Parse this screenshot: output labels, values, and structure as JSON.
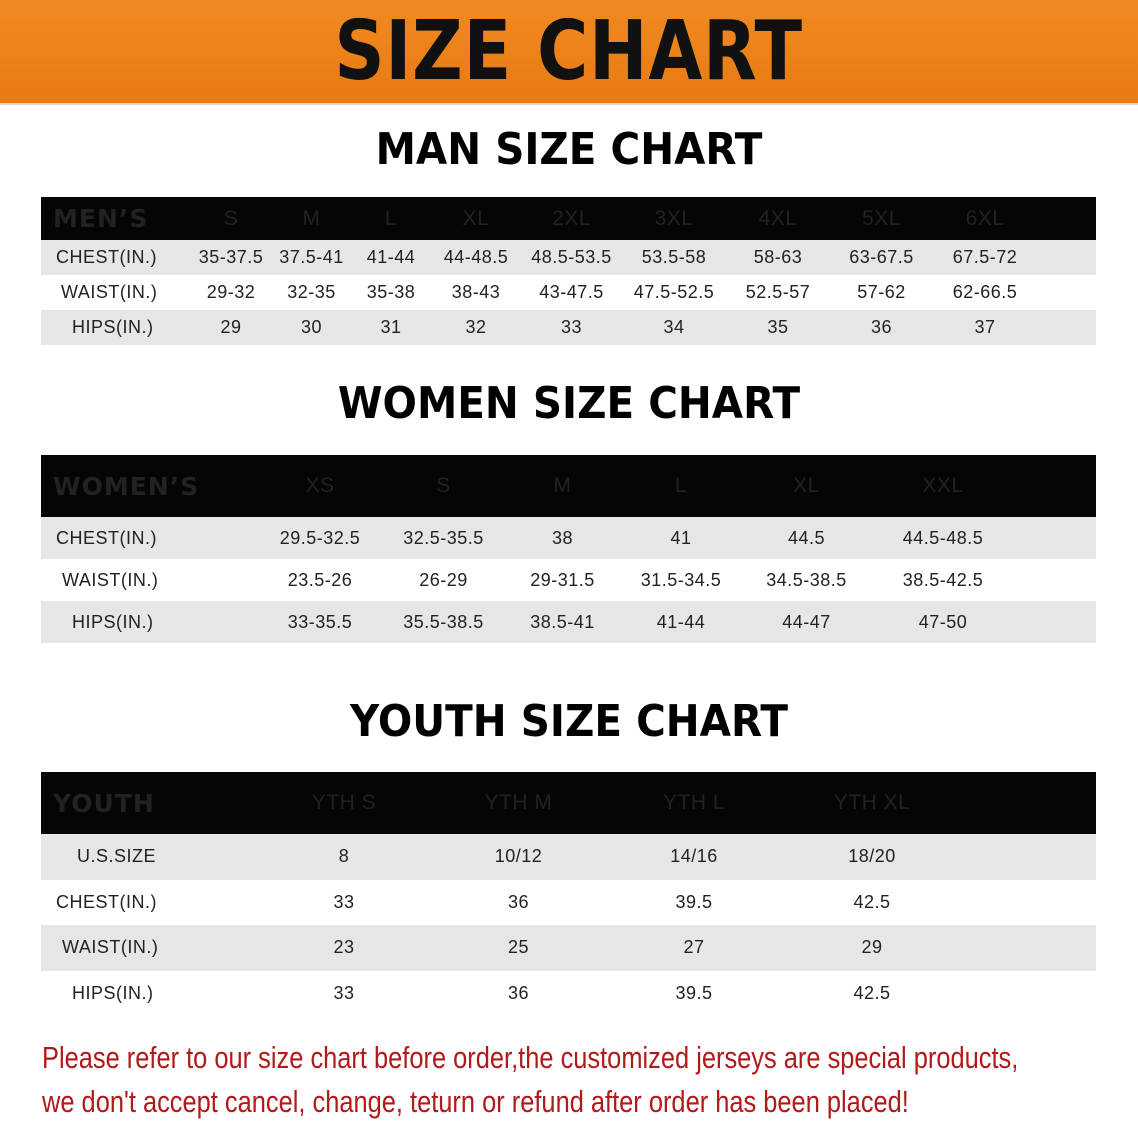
{
  "banner": {
    "title": "SIZE CHART",
    "color": "#ee8419"
  },
  "sections": [
    {
      "key": "men",
      "title": "MAN SIZE CHART",
      "header": [
        "MEN’S",
        "S",
        "M",
        "L",
        "XL",
        "2XL",
        "3XL",
        "4XL",
        "5XL",
        "6XL"
      ],
      "rows": [
        [
          "CHEST(IN.)",
          "35-37.5",
          "37.5-41",
          "41-44",
          "44-48.5",
          "48.5-53.5",
          "53.5-58",
          "58-63",
          "63-67.5",
          "67.5-72"
        ],
        [
          "WAIST(IN.)",
          "29-32",
          "32-35",
          "35-38",
          "38-43",
          "43-47.5",
          "47.5-52.5",
          "52.5-57",
          "57-62",
          "62-66.5"
        ],
        [
          "HIPS(IN.)",
          "29",
          "30",
          "31",
          "32",
          "33",
          "34",
          "35",
          "36",
          "37"
        ]
      ]
    },
    {
      "key": "women",
      "title": "WOMEN SIZE CHART",
      "header": [
        "WOMEN’S",
        "XS",
        "S",
        "M",
        "L",
        "XL",
        "XXL"
      ],
      "rows": [
        [
          "CHEST(IN.)",
          "29.5-32.5",
          "32.5-35.5",
          "38",
          "41",
          "44.5",
          "44.5-48.5"
        ],
        [
          "WAIST(IN.)",
          "23.5-26",
          "26-29",
          "29-31.5",
          "31.5-34.5",
          "34.5-38.5",
          "38.5-42.5"
        ],
        [
          "HIPS(IN.)",
          "33-35.5",
          "35.5-38.5",
          "38.5-41",
          "41-44",
          "44-47",
          "47-50"
        ]
      ]
    },
    {
      "key": "youth",
      "title": "YOUTH SIZE CHART",
      "header": [
        "YOUTH",
        "YTH S",
        "YTH M",
        "YTH L",
        "YTH XL"
      ],
      "rows": [
        [
          "U.S.SIZE",
          "8",
          "10/12",
          "14/16",
          "18/20"
        ],
        [
          "CHEST(IN.)",
          "33",
          "36",
          "39.5",
          "42.5"
        ],
        [
          "WAIST(IN.)",
          "23",
          "25",
          "27",
          "29"
        ],
        [
          "HIPS(IN.)",
          "33",
          "36",
          "39.5",
          "42.5"
        ]
      ]
    }
  ],
  "notice": {
    "line1": "Please refer to our size chart before order,the customized jerseys are special products,",
    "line2": "we don't accept cancel, change, teturn or refund after order has been placed!",
    "color": "#b11a1a"
  }
}
